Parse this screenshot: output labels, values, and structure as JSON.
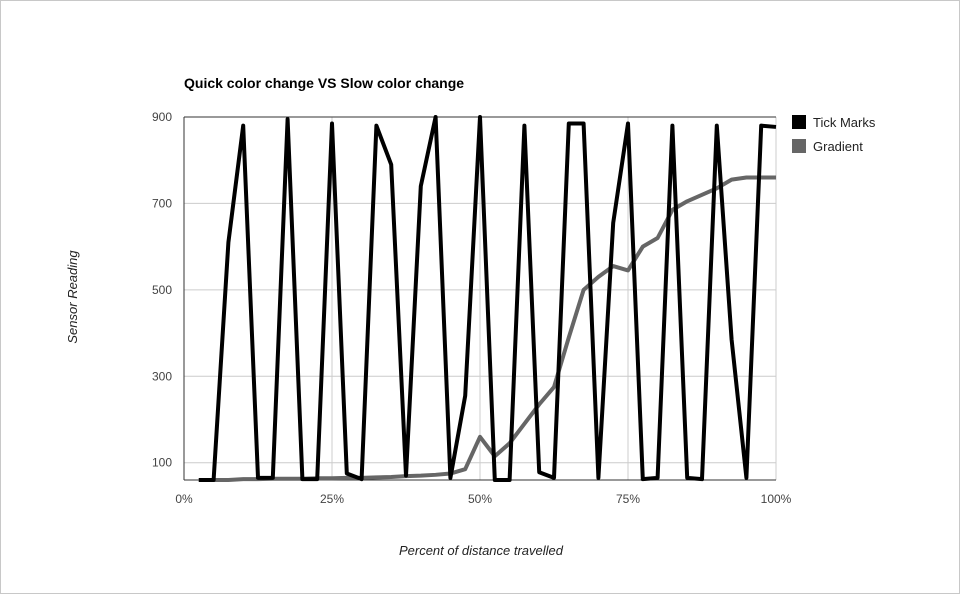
{
  "chart_data": {
    "type": "line",
    "title": "Quick color change VS Slow color change",
    "xlabel": "Percent of distance travelled",
    "ylabel": "Sensor Reading",
    "xlim": [
      0,
      100
    ],
    "ylim": [
      60,
      900
    ],
    "x_ticks": [
      0,
      25,
      50,
      75,
      100
    ],
    "x_tick_labels": [
      "0%",
      "25%",
      "50%",
      "75%",
      "100%"
    ],
    "y_ticks": [
      100,
      300,
      500,
      700,
      900
    ],
    "y_tick_labels": [
      "100",
      "300",
      "500",
      "700",
      "900"
    ],
    "grid": true,
    "legend_position": "right",
    "series": [
      {
        "name": "Tick Marks",
        "color": "#000000",
        "points": [
          [
            2.5,
            60
          ],
          [
            5,
            60
          ],
          [
            7.5,
            610
          ],
          [
            10,
            880
          ],
          [
            12.5,
            65
          ],
          [
            15,
            65
          ],
          [
            17.5,
            895
          ],
          [
            20,
            62
          ],
          [
            22.5,
            62
          ],
          [
            25,
            885
          ],
          [
            27.5,
            75
          ],
          [
            30,
            62
          ],
          [
            32.5,
            880
          ],
          [
            35,
            790
          ],
          [
            37.5,
            70
          ],
          [
            40,
            740
          ],
          [
            42.5,
            900
          ],
          [
            45,
            65
          ],
          [
            47.5,
            255
          ],
          [
            50,
            900
          ],
          [
            52.5,
            60
          ],
          [
            55,
            60
          ],
          [
            57.5,
            880
          ],
          [
            60,
            78
          ],
          [
            62.5,
            65
          ],
          [
            65,
            885
          ],
          [
            67.5,
            885
          ],
          [
            70,
            65
          ],
          [
            72.5,
            655
          ],
          [
            75,
            885
          ],
          [
            77.5,
            62
          ],
          [
            80,
            65
          ],
          [
            82.5,
            880
          ],
          [
            85,
            65
          ],
          [
            87.5,
            62
          ],
          [
            90,
            880
          ],
          [
            92.5,
            385
          ],
          [
            95,
            65
          ],
          [
            97.5,
            880
          ],
          [
            100,
            877
          ]
        ]
      },
      {
        "name": "Gradient",
        "color": "#666666",
        "points": [
          [
            2.5,
            60
          ],
          [
            5,
            60
          ],
          [
            7.5,
            60
          ],
          [
            10,
            62
          ],
          [
            12.5,
            62
          ],
          [
            15,
            63
          ],
          [
            17.5,
            63
          ],
          [
            20,
            63
          ],
          [
            22.5,
            64
          ],
          [
            25,
            64
          ],
          [
            27.5,
            65
          ],
          [
            30,
            65
          ],
          [
            32.5,
            66
          ],
          [
            35,
            67
          ],
          [
            37.5,
            69
          ],
          [
            40,
            70
          ],
          [
            42.5,
            72
          ],
          [
            45,
            75
          ],
          [
            47.5,
            85
          ],
          [
            50,
            160
          ],
          [
            52.5,
            115
          ],
          [
            55,
            145
          ],
          [
            57.5,
            190
          ],
          [
            60,
            235
          ],
          [
            62.5,
            275
          ],
          [
            65,
            390
          ],
          [
            67.5,
            500
          ],
          [
            70,
            530
          ],
          [
            72.5,
            555
          ],
          [
            75,
            545
          ],
          [
            77.5,
            600
          ],
          [
            80,
            620
          ],
          [
            82.5,
            685
          ],
          [
            85,
            705
          ],
          [
            87.5,
            720
          ],
          [
            90,
            735
          ],
          [
            92.5,
            755
          ],
          [
            95,
            760
          ],
          [
            97.5,
            760
          ],
          [
            100,
            760
          ]
        ]
      }
    ]
  }
}
